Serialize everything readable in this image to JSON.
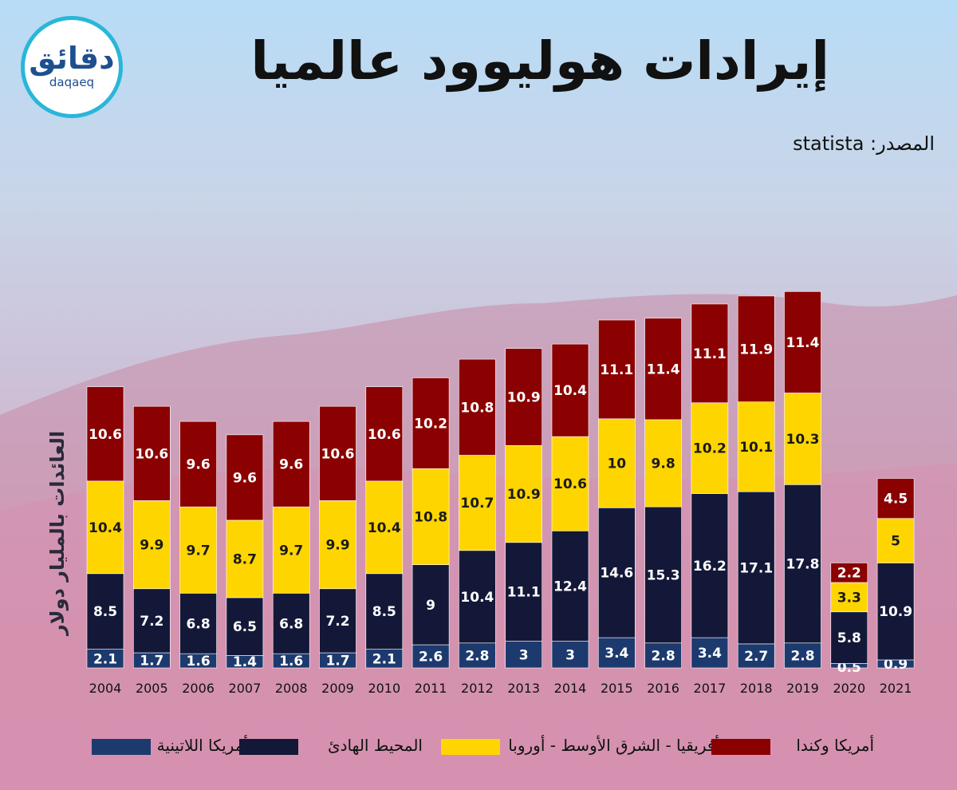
{
  "brand": {
    "name_ar": "دقائق",
    "name_en": "daqaeq"
  },
  "title": "إيرادات هوليوود عالميا",
  "source": {
    "label": "المصدر:",
    "value": "statista"
  },
  "colors": {
    "latin_america": "#1d3a6e",
    "asia_pacific": "#141838",
    "emea": "#ffd500",
    "us_canada": "#8b0000"
  },
  "chart_data": {
    "type": "bar",
    "stacked": true,
    "ylabel": "العائدات بالمليار دولار",
    "categories": [
      "2004",
      "2005",
      "2006",
      "2007",
      "2008",
      "2009",
      "2010",
      "2011",
      "2012",
      "2013",
      "2014",
      "2015",
      "2016",
      "2017",
      "2018",
      "2019",
      "2020",
      "2021"
    ],
    "series": [
      {
        "name": "أمريكا اللاتينية",
        "key": "latin_america",
        "values": [
          2.1,
          1.7,
          1.6,
          1.4,
          1.6,
          1.7,
          2.1,
          2.6,
          2.8,
          3,
          3,
          3.4,
          2.8,
          3.4,
          2.7,
          2.8,
          0.5,
          0.9
        ]
      },
      {
        "name": "المحيط الهادئ",
        "key": "asia_pacific",
        "values": [
          8.5,
          7.2,
          6.8,
          6.5,
          6.8,
          7.2,
          8.5,
          9,
          10.4,
          11.1,
          12.4,
          14.6,
          15.3,
          16.2,
          17.1,
          17.8,
          5.8,
          10.9
        ]
      },
      {
        "name": "أفريقيا - الشرق الأوسط - أوروبا",
        "key": "emea",
        "values": [
          10.4,
          9.9,
          9.7,
          8.7,
          9.7,
          9.9,
          10.4,
          10.8,
          10.7,
          10.9,
          10.6,
          10,
          9.8,
          10.2,
          10.1,
          10.3,
          3.3,
          5
        ]
      },
      {
        "name": "أمريكا وكندا",
        "key": "us_canada",
        "values": [
          10.6,
          10.6,
          9.6,
          9.6,
          9.6,
          10.6,
          10.6,
          10.2,
          10.8,
          10.9,
          10.4,
          11.1,
          11.4,
          11.1,
          11.9,
          11.4,
          2.2,
          4.5
        ]
      }
    ],
    "legend_position": "bottom",
    "grid": false
  }
}
